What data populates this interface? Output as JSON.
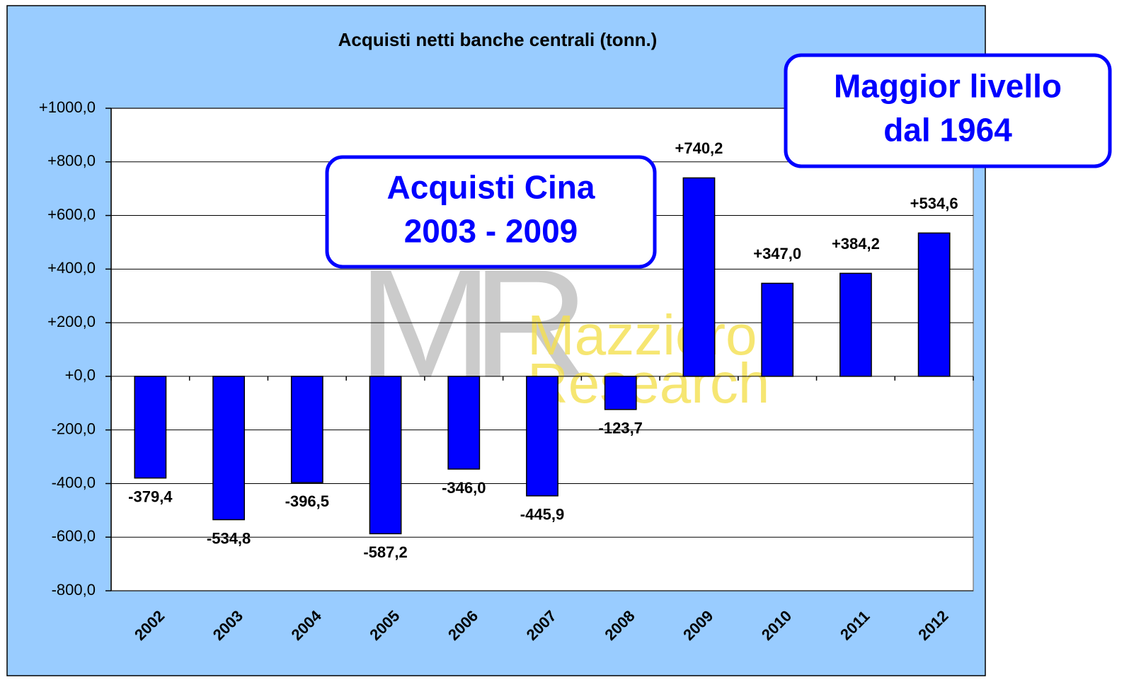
{
  "chart_data": {
    "type": "bar",
    "title": "Acquisti netti banche centrali (tonn.)",
    "categories": [
      "2002",
      "2003",
      "2004",
      "2005",
      "2006",
      "2007",
      "2008",
      "2009",
      "2010",
      "2011",
      "2012"
    ],
    "values": [
      -379.4,
      -534.8,
      -396.5,
      -587.2,
      -346.0,
      -445.9,
      -123.7,
      740.2,
      347.0,
      384.2,
      534.6
    ],
    "value_labels": [
      "-379,4",
      "-534,8",
      "-396,5",
      "-587,2",
      "-346,0",
      "-445,9",
      "-123,7",
      "+740,2",
      "+347,0",
      "+384,2",
      "+534,6"
    ],
    "color": "#0000ff",
    "ylim": [
      -800,
      1000
    ],
    "yticks": [
      {
        "value": -800,
        "label": "-800,0"
      },
      {
        "value": -600,
        "label": "-600,0"
      },
      {
        "value": -400,
        "label": "-400,0"
      },
      {
        "value": -200,
        "label": "-200,0"
      },
      {
        "value": 0,
        "label": "+0,0"
      },
      {
        "value": 200,
        "label": "+200,0"
      },
      {
        "value": 400,
        "label": "+400,0"
      },
      {
        "value": 600,
        "label": "+600,0"
      },
      {
        "value": 800,
        "label": "+800,0"
      },
      {
        "value": 1000,
        "label": "+1000,0"
      }
    ],
    "grid": true,
    "annotations": [
      {
        "lines": [
          "Acquisti Cina",
          "2003 - 2009"
        ]
      },
      {
        "lines": [
          "Maggior livello",
          "dal 1964"
        ]
      }
    ],
    "watermark": [
      "MR",
      "Mazziero",
      "Research"
    ]
  }
}
